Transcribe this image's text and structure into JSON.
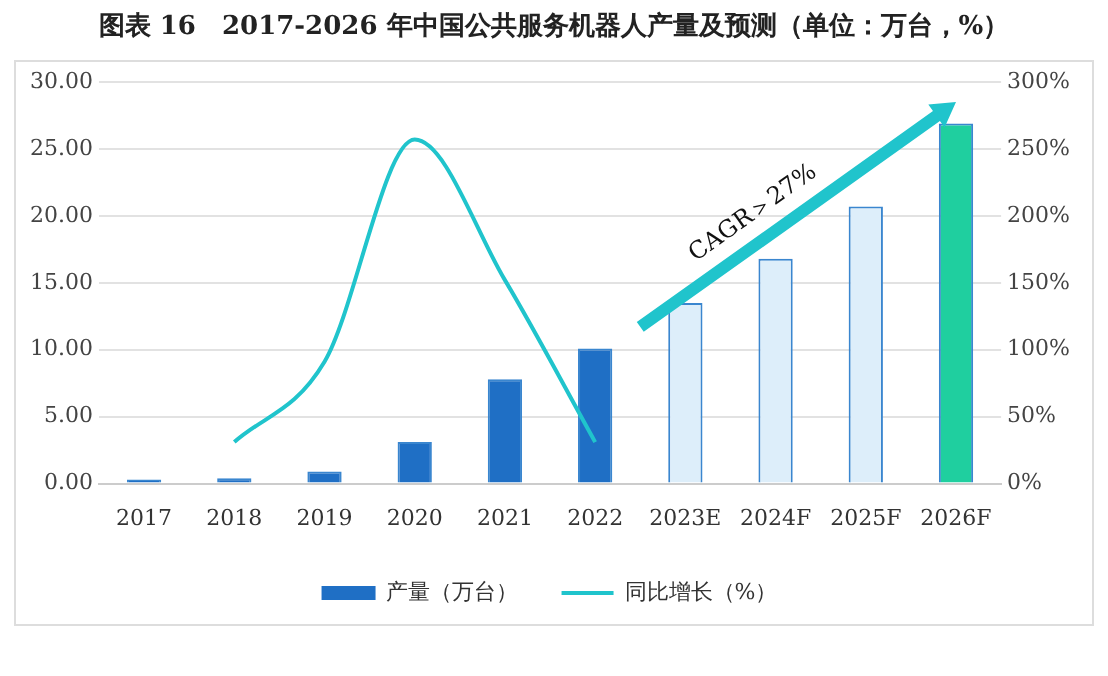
{
  "chart_data": {
    "type": "bar",
    "title": "图表 16　2017-2026 年中国公共服务机器人产量及预测（单位：万台，%）",
    "categories": [
      "2017",
      "2018",
      "2019",
      "2020",
      "2021",
      "2022",
      "2023E",
      "2024F",
      "2025F",
      "2026F"
    ],
    "series": [
      {
        "name": "产量（万台）",
        "color": "#1f6fc5",
        "colors": [
          "#1f6fc5",
          "#1f6fc5",
          "#1f6fc5",
          "#1f6fc5",
          "#1f6fc5",
          "#1f6fc5",
          "#ddeefa",
          "#ddeefa",
          "#ddeefa",
          "#1fcf9f"
        ],
        "values": [
          0.3,
          0.4,
          0.9,
          3.1,
          7.8,
          10.1,
          13.5,
          16.8,
          20.7,
          26.9
        ]
      },
      {
        "name": "同比增长（%）",
        "type": "line",
        "axis": "y2",
        "color": "#20c4cc",
        "values": [
          null,
          31,
          91,
          257,
          152,
          31,
          null,
          null,
          null,
          null
        ]
      }
    ],
    "ylim": [
      0,
      30
    ],
    "yticks": [
      {
        "value": 0,
        "label": "0.00"
      },
      {
        "value": 5,
        "label": "5.00"
      },
      {
        "value": 10,
        "label": "10.00"
      },
      {
        "value": 15,
        "label": "15.00"
      },
      {
        "value": 20,
        "label": "20.00"
      },
      {
        "value": 25,
        "label": "25.00"
      },
      {
        "value": 30,
        "label": "30.00"
      }
    ],
    "y2lim": [
      0,
      300
    ],
    "y2ticks": [
      {
        "value": 0,
        "label": "0%"
      },
      {
        "value": 50,
        "label": "50%"
      },
      {
        "value": 100,
        "label": "100%"
      },
      {
        "value": 150,
        "label": "150%"
      },
      {
        "value": 200,
        "label": "200%"
      },
      {
        "value": 250,
        "label": "250%"
      },
      {
        "value": 300,
        "label": "300%"
      }
    ],
    "annotations": [
      "CAGR＞27%"
    ],
    "grid": "y",
    "legend": "bottom",
    "marker": "none",
    "line_style": "solid"
  }
}
